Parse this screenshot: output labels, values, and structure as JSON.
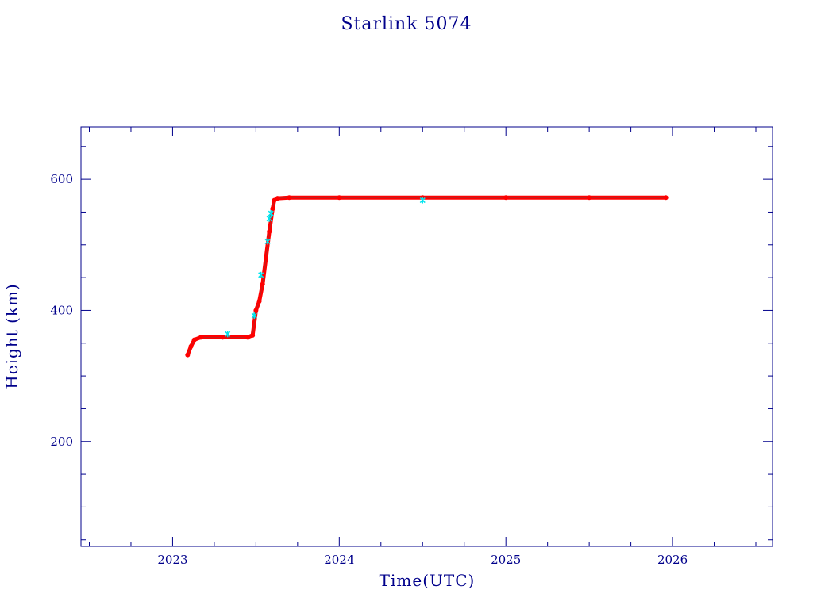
{
  "chart_data": {
    "type": "scatter",
    "title": "Starlink 5074",
    "xlabel": "Time(UTC)",
    "ylabel": "Height (km)",
    "xlim": [
      2022.45,
      2026.6
    ],
    "ylim": [
      40,
      680
    ],
    "x_major_ticks": [
      2023,
      2024,
      2025,
      2026
    ],
    "x_minor_step": 0.25,
    "y_major_ticks": [
      200,
      400,
      600
    ],
    "y_minor_step": 50,
    "grid": false,
    "legend": "none",
    "colors": {
      "axis": "#00008b",
      "primary_series": "#ff0000",
      "secondary_series": "#00e5ee",
      "outline": "#555555"
    },
    "series": [
      {
        "type": "line-profile",
        "color": "#ff0000",
        "x": [
          2023.09,
          2023.11,
          2023.13,
          2023.17,
          2023.3,
          2023.45,
          2023.48,
          2023.5,
          2023.52,
          2023.54,
          2023.56,
          2023.58,
          2023.6,
          2023.61,
          2023.63,
          2023.7,
          2024.0,
          2024.5,
          2025.0,
          2025.5,
          2025.96
        ],
        "y": [
          332,
          345,
          355,
          359,
          359,
          359,
          362,
          400,
          414,
          440,
          480,
          520,
          555,
          568,
          571,
          572,
          572,
          572,
          572,
          572,
          572
        ]
      },
      {
        "type": "scatter",
        "color": "#00e5ee",
        "x": [
          2023.33,
          2023.49,
          2023.53,
          2023.57,
          2023.58,
          2023.59,
          2024.5
        ],
        "y": [
          364,
          392,
          454,
          505,
          540,
          548,
          568
        ]
      }
    ]
  }
}
